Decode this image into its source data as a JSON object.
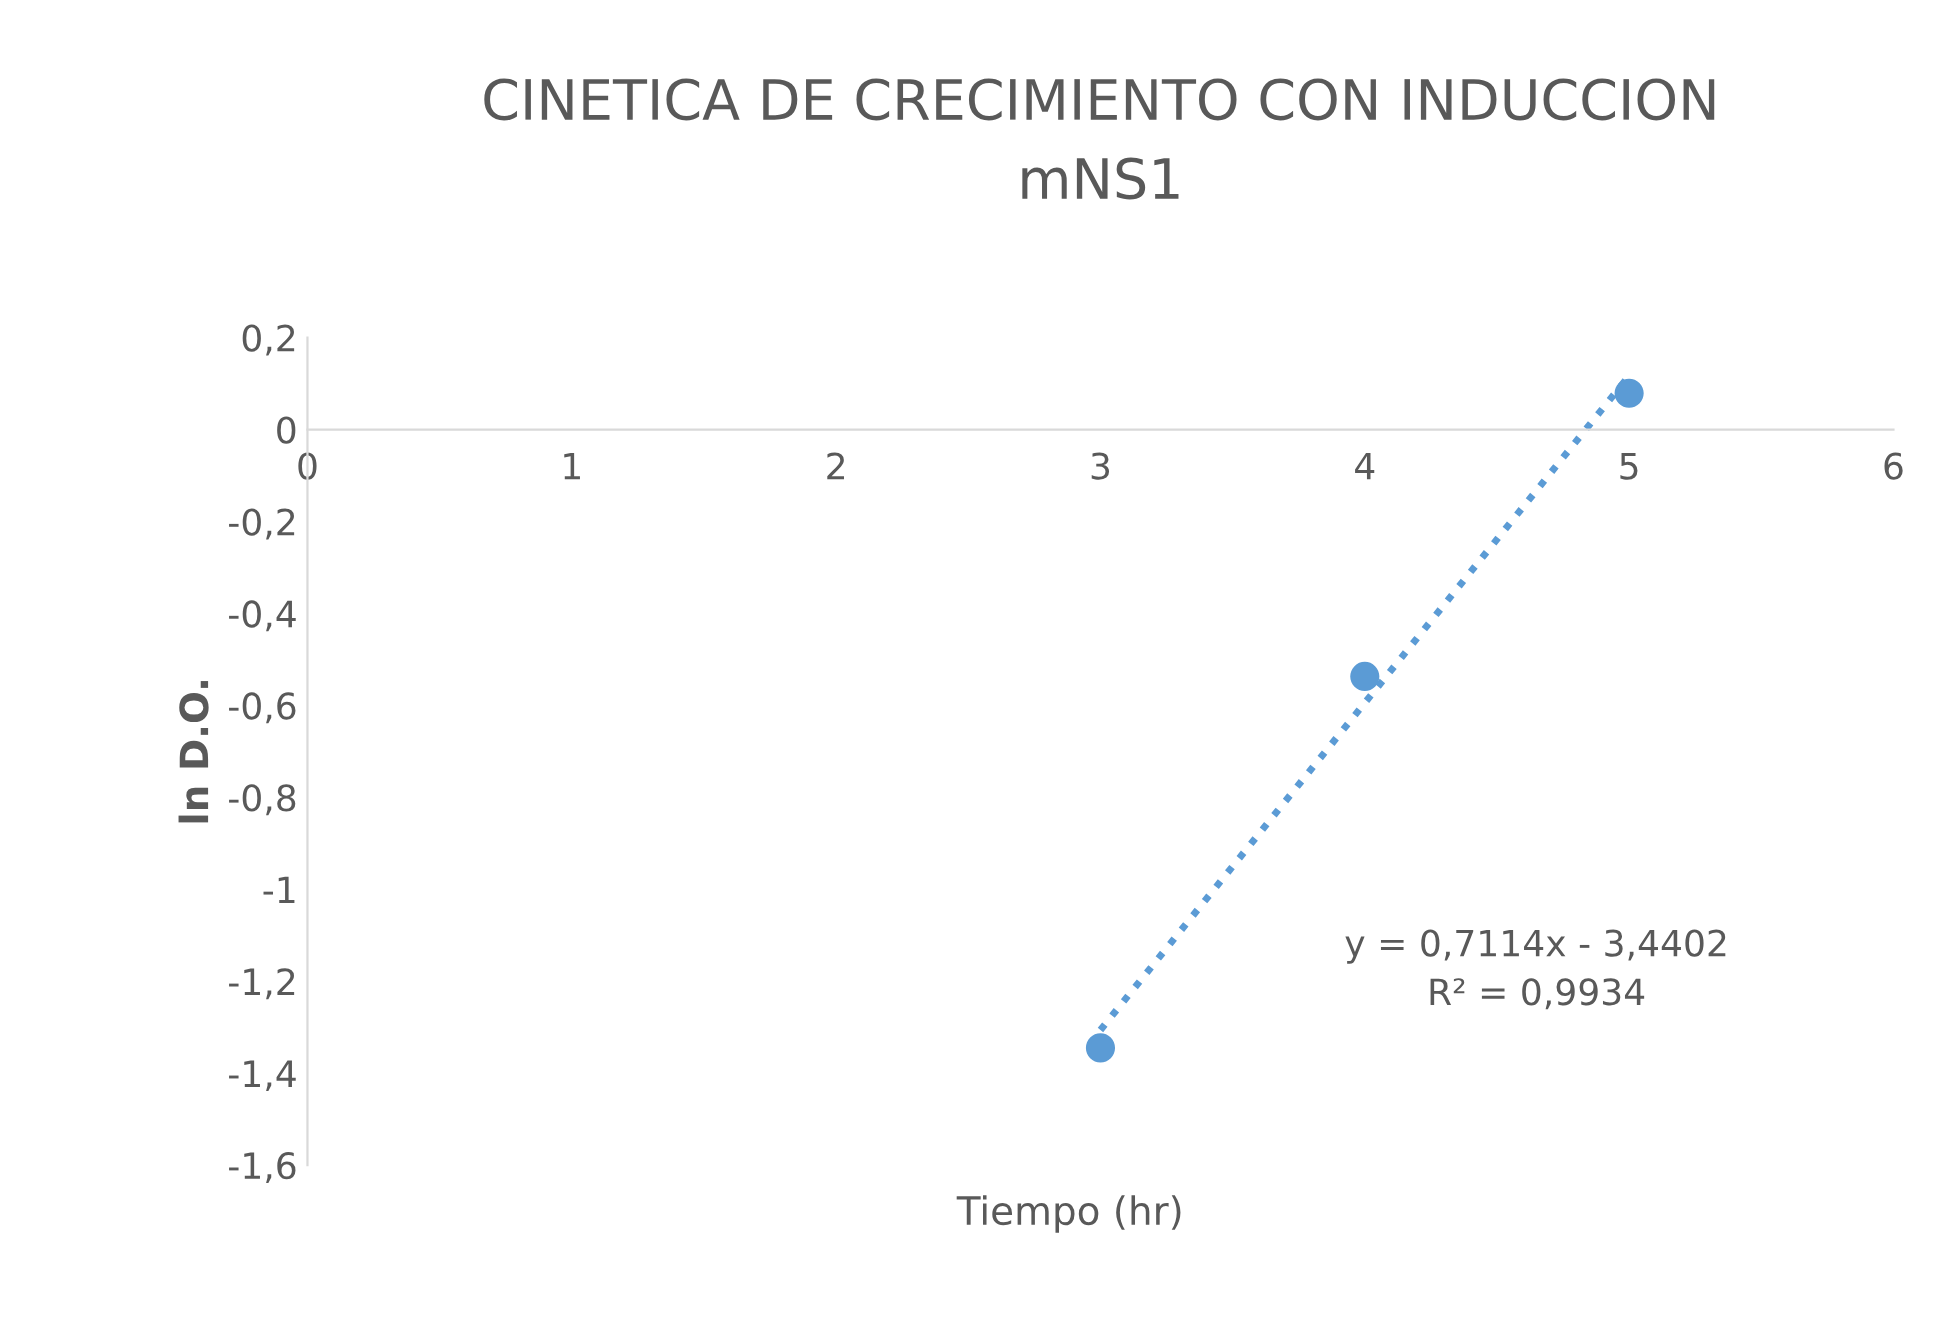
{
  "chart_data": {
    "type": "scatter",
    "title": "CINETICA DE CRECIMIENTO CON INDUCCION\nmNS1",
    "xlabel": "Tiempo (hr)",
    "ylabel": "ln D.O.",
    "xlim": [
      0,
      6
    ],
    "xticks": [
      0,
      1,
      2,
      3,
      4,
      5,
      6
    ],
    "ylim": [
      -1.6,
      0.2
    ],
    "yticks": [
      {
        "value": 0.2,
        "label": "0,2"
      },
      0,
      {
        "value": -0.2,
        "label": "-0,2"
      },
      {
        "value": -0.4,
        "label": "-0,4"
      },
      {
        "value": -0.6,
        "label": "-0,6"
      },
      {
        "value": -0.8,
        "label": "-0,8"
      },
      -1,
      {
        "value": -1.2,
        "label": "-1,2"
      },
      {
        "value": -1.4,
        "label": "-1,4"
      },
      {
        "value": -1.6,
        "label": "-1,6"
      }
    ],
    "grid": false,
    "marker": "circle",
    "series": [
      {
        "color": "#5b9bd5",
        "x": [
          3,
          4,
          5
        ],
        "values": [
          -1.345,
          -0.537,
          0.079
        ]
      },
      {
        "type": "line",
        "color": "#5b9bd5",
        "line_style": "dotted",
        "marker": "none",
        "x": [
          3,
          5
        ],
        "values": [
          -1.306,
          0.117
        ]
      }
    ],
    "annotations": [
      "y = 0,7114x - 3,4402\nR² = 0,9934"
    ]
  }
}
